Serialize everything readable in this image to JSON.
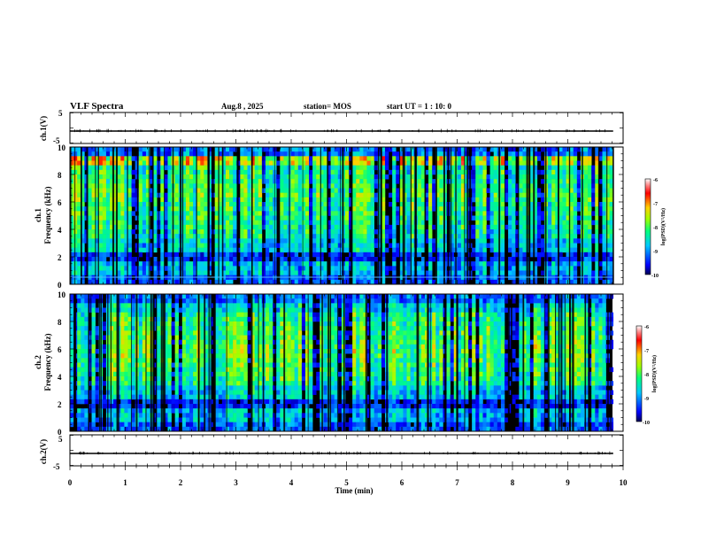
{
  "header": {
    "title": "VLF Spectra",
    "date": "Aug.8  , 2025",
    "station": "station= MOS",
    "start_ut": "start  UT =   1 : 10: 0"
  },
  "colors": {
    "frame": "#000000",
    "background": "#ffffff",
    "cursor_line": "#4db8ff"
  },
  "chart_data": [
    {
      "id": "ch1_waveform",
      "type": "line",
      "ylabel": "ch.1(V)",
      "ylim": [
        -5,
        5
      ],
      "y_ticks": [
        "5",
        "-5"
      ],
      "baseline_value": -1
    },
    {
      "id": "ch1_spectrogram",
      "type": "heatmap",
      "ylabel_top": "ch.1",
      "ylabel": "Frequency (kHz)",
      "ylim": [
        0,
        10
      ],
      "y_ticks": [
        "0",
        "2",
        "4",
        "6",
        "8",
        "10"
      ],
      "reference_line_khz": 0.5,
      "colorbar": {
        "label": "log(PSD)(V²/Hz)",
        "range": [
          -10,
          -6
        ],
        "ticks": [
          "-6",
          "-7",
          "-8",
          "-9",
          "-10"
        ]
      }
    },
    {
      "id": "ch2_spectrogram",
      "type": "heatmap",
      "ylabel_top": "ch.2",
      "ylabel": "Frequency (kHz)",
      "ylim": [
        0,
        10
      ],
      "y_ticks": [
        "0",
        "2",
        "4",
        "6",
        "8",
        "10"
      ],
      "colorbar": {
        "label": "log(PSD)(V²/Hz)",
        "range": [
          -10,
          -6
        ],
        "ticks": [
          "-6",
          "-7",
          "-8",
          "-9",
          "-10"
        ]
      }
    },
    {
      "id": "ch2_waveform",
      "type": "line",
      "ylabel": "ch.2(V)",
      "ylim": [
        -5,
        5
      ],
      "y_ticks": [
        "5",
        "-5"
      ],
      "baseline_value": -1
    }
  ],
  "xaxis": {
    "label": "Time (min)",
    "range": [
      0,
      10
    ],
    "ticks": [
      "0",
      "1",
      "2",
      "3",
      "4",
      "5",
      "6",
      "7",
      "8",
      "9",
      "10"
    ],
    "data_end_min": 9.82
  }
}
